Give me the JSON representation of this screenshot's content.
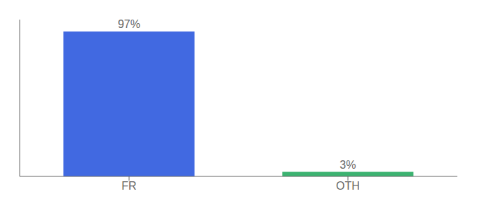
{
  "chart_data": {
    "type": "bar",
    "categories": [
      "FR",
      "OTH"
    ],
    "values": [
      97,
      3
    ],
    "colors": [
      "#4169E1",
      "#3CB371"
    ],
    "value_labels": [
      "97%",
      "3%"
    ],
    "data_labels": true,
    "ylim": [
      0,
      105
    ],
    "tick_labels": "x"
  }
}
